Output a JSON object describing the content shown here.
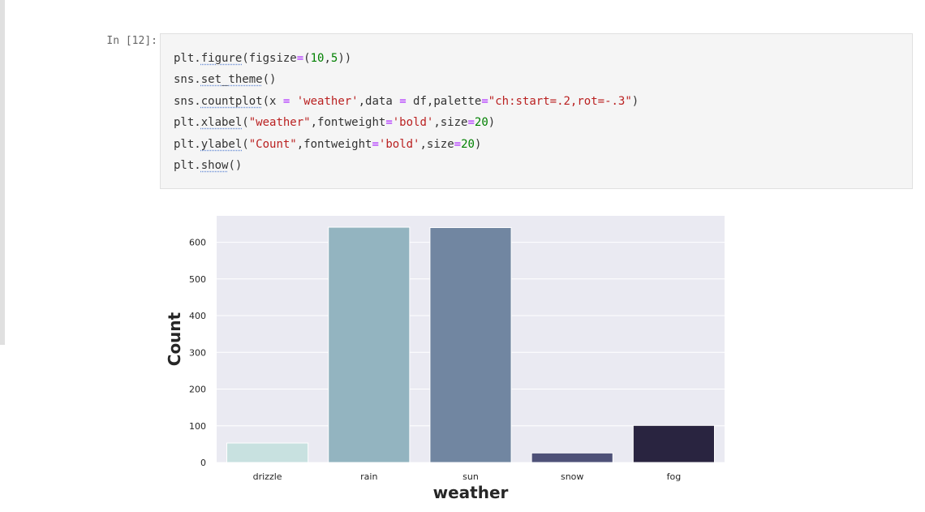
{
  "cell": {
    "prompt": "In [12]:",
    "lines": [
      [
        {
          "t": "plt."
        },
        {
          "t": "figure",
          "c": "fn"
        },
        {
          "t": "(figsize"
        },
        {
          "t": "=",
          "c": "op"
        },
        {
          "t": "("
        },
        {
          "t": "10",
          "c": "num"
        },
        {
          "t": ","
        },
        {
          "t": "5",
          "c": "num"
        },
        {
          "t": "))"
        }
      ],
      [
        {
          "t": "sns."
        },
        {
          "t": "set_theme",
          "c": "fn"
        },
        {
          "t": "()"
        }
      ],
      [
        {
          "t": "sns."
        },
        {
          "t": "countplot",
          "c": "fn"
        },
        {
          "t": "(x "
        },
        {
          "t": "=",
          "c": "op"
        },
        {
          "t": " "
        },
        {
          "t": "'weather'",
          "c": "str"
        },
        {
          "t": ",data "
        },
        {
          "t": "=",
          "c": "op"
        },
        {
          "t": " df,palette"
        },
        {
          "t": "=",
          "c": "op"
        },
        {
          "t": "\"ch:start=.2,rot=-.3\"",
          "c": "str"
        },
        {
          "t": ")"
        }
      ],
      [
        {
          "t": "plt."
        },
        {
          "t": "xlabel",
          "c": "fn"
        },
        {
          "t": "("
        },
        {
          "t": "\"weather\"",
          "c": "str"
        },
        {
          "t": ",fontweight"
        },
        {
          "t": "=",
          "c": "op"
        },
        {
          "t": "'bold'",
          "c": "str"
        },
        {
          "t": ",size"
        },
        {
          "t": "=",
          "c": "op"
        },
        {
          "t": "20",
          "c": "num"
        },
        {
          "t": ")"
        }
      ],
      [
        {
          "t": "plt."
        },
        {
          "t": "ylabel",
          "c": "fn"
        },
        {
          "t": "("
        },
        {
          "t": "\"Count\"",
          "c": "str"
        },
        {
          "t": ",fontweight"
        },
        {
          "t": "=",
          "c": "op"
        },
        {
          "t": "'bold'",
          "c": "str"
        },
        {
          "t": ",size"
        },
        {
          "t": "=",
          "c": "op"
        },
        {
          "t": "20",
          "c": "num"
        },
        {
          "t": ")"
        }
      ],
      [
        {
          "t": "plt."
        },
        {
          "t": "show",
          "c": "fn"
        },
        {
          "t": "()"
        }
      ]
    ]
  },
  "chart_data": {
    "type": "bar",
    "categories": [
      "drizzle",
      "rain",
      "sun",
      "snow",
      "fog"
    ],
    "values": [
      53,
      641,
      640,
      26,
      101
    ],
    "colors": [
      "#c8e1e0",
      "#93b4c0",
      "#7186a1",
      "#4e5178",
      "#292440"
    ],
    "xlabel": "weather",
    "ylabel": "Count",
    "ylim": [
      0,
      672
    ],
    "yticks": [
      0,
      100,
      200,
      300,
      400,
      500,
      600
    ],
    "grid": true,
    "background": "#eaeaf2"
  }
}
